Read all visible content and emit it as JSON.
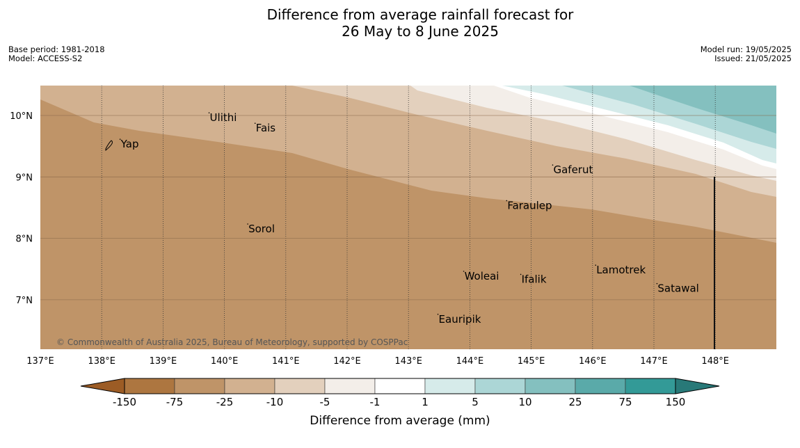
{
  "title": {
    "line1": "Difference from average rainfall forecast for",
    "line2": "26 May to 8 June 2025"
  },
  "meta_left": {
    "base_period": "Base period: 1981-2018",
    "model": "Model: ACCESS-S2"
  },
  "meta_right": {
    "model_run": "Model run: 19/05/2025",
    "issued": "Issued: 21/05/2025"
  },
  "map": {
    "lon_range": [
      137,
      149
    ],
    "lat_range": [
      6.2,
      10.5
    ],
    "lon_ticks": [
      "137°E",
      "138°E",
      "139°E",
      "140°E",
      "141°E",
      "142°E",
      "143°E",
      "144°E",
      "145°E",
      "146°E",
      "147°E",
      "148°E"
    ],
    "lat_ticks": [
      "10°N",
      "9°N",
      "8°N",
      "7°N"
    ],
    "copyright": "© Commonwealth of Australia 2025, Bureau of Meteorology, supported by COSPPac",
    "places": [
      {
        "name": "Yap",
        "lon": 138.3,
        "lat": 9.5
      },
      {
        "name": "Ulithi",
        "lon": 139.75,
        "lat": 9.93
      },
      {
        "name": "Fais",
        "lon": 140.5,
        "lat": 9.76
      },
      {
        "name": "Gaferut",
        "lon": 145.35,
        "lat": 9.08
      },
      {
        "name": "Faraulep",
        "lon": 144.6,
        "lat": 8.5
      },
      {
        "name": "Sorol",
        "lon": 140.38,
        "lat": 8.12
      },
      {
        "name": "Woleai",
        "lon": 143.9,
        "lat": 7.35
      },
      {
        "name": "Ifalik",
        "lon": 144.83,
        "lat": 7.3
      },
      {
        "name": "Lamotrek",
        "lon": 146.05,
        "lat": 7.45
      },
      {
        "name": "Satawal",
        "lon": 147.05,
        "lat": 7.15
      },
      {
        "name": "Eauripik",
        "lon": 143.48,
        "lat": 6.65
      }
    ]
  },
  "colorbar": {
    "title": "Difference from average (mm)",
    "labels": [
      "-150",
      "-75",
      "-25",
      "-10",
      "-5",
      "-1",
      "1",
      "5",
      "10",
      "25",
      "75",
      "150"
    ],
    "colors": [
      "#9c5c25",
      "#ad7640",
      "#bf9468",
      "#d2b190",
      "#e3d0bd",
      "#f3eee9",
      "#ffffff",
      "#d6ebea",
      "#acd6d6",
      "#84c0bf",
      "#5aaaa9",
      "#339a97",
      "#287978"
    ]
  }
}
